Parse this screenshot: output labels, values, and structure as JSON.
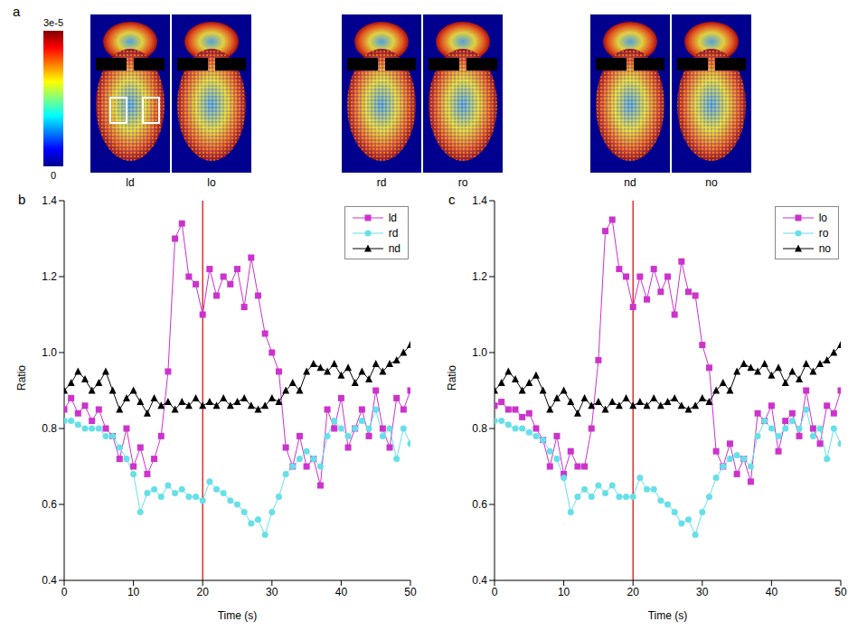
{
  "chart_data": [
    {
      "type": "heatmap",
      "label": "a",
      "images": [
        "ld",
        "lo",
        "rd",
        "ro",
        "nd",
        "no"
      ],
      "colorbar": {
        "range": [
          0,
          3e-05
        ],
        "ticks": [
          {
            "value": 0,
            "label": "0"
          },
          {
            "value": 3e-05,
            "label": "3e-5"
          }
        ]
      }
    },
    {
      "type": "line",
      "label": "b",
      "x_label": "Time (s)",
      "y_label": "Ratio",
      "xlim": [
        0,
        50
      ],
      "xticks": [
        0,
        10,
        20,
        30,
        40,
        50
      ],
      "ylim": [
        0.4,
        1.4
      ],
      "yticks": [
        0.4,
        0.6,
        0.8,
        {
          "value": 1,
          "label": "1.0"
        },
        1.2,
        1.4
      ],
      "grid": false,
      "legend": "upper right",
      "reference_x": 20,
      "reference_color": "#cc0000",
      "x": [
        0,
        1,
        2,
        3,
        4,
        5,
        6,
        7,
        8,
        9,
        10,
        11,
        12,
        13,
        14,
        15,
        16,
        17,
        18,
        19,
        20,
        21,
        22,
        23,
        24,
        25,
        26,
        27,
        28,
        29,
        30,
        31,
        32,
        33,
        34,
        35,
        36,
        37,
        38,
        39,
        40,
        41,
        42,
        43,
        44,
        45,
        46,
        47,
        48,
        49,
        50
      ],
      "series": [
        {
          "name": "ld",
          "color": "#cc33cc",
          "marker": "square",
          "line_style": "solid",
          "values": [
            0.85,
            0.88,
            0.84,
            0.86,
            0.82,
            0.85,
            0.8,
            0.78,
            0.72,
            0.8,
            0.7,
            0.75,
            0.68,
            0.72,
            0.78,
            0.95,
            1.3,
            1.34,
            1.2,
            1.18,
            1.1,
            1.22,
            1.15,
            1.2,
            1.18,
            1.22,
            1.12,
            1.25,
            1.15,
            1.05,
            1.0,
            0.95,
            0.75,
            0.7,
            0.78,
            0.7,
            0.72,
            0.65,
            0.85,
            0.8,
            0.88,
            0.75,
            0.8,
            0.85,
            0.78,
            0.9,
            0.8,
            0.75,
            0.88,
            0.85,
            0.9
          ]
        },
        {
          "name": "rd",
          "color": "#66e0e8",
          "marker": "circle",
          "line_style": "solid",
          "values": [
            0.82,
            0.82,
            0.81,
            0.8,
            0.8,
            0.8,
            0.78,
            0.78,
            0.75,
            0.72,
            0.68,
            0.58,
            0.63,
            0.64,
            0.62,
            0.65,
            0.63,
            0.64,
            0.62,
            0.62,
            0.61,
            0.66,
            0.64,
            0.63,
            0.61,
            0.6,
            0.58,
            0.55,
            0.56,
            0.52,
            0.58,
            0.62,
            0.68,
            0.7,
            0.72,
            0.74,
            0.72,
            0.7,
            0.78,
            0.82,
            0.8,
            0.78,
            0.8,
            0.82,
            0.8,
            0.85,
            0.78,
            0.8,
            0.72,
            0.8,
            0.76
          ]
        },
        {
          "name": "nd",
          "color": "#000000",
          "marker": "triangle",
          "line_style": "solid",
          "values": [
            0.9,
            0.92,
            0.95,
            0.93,
            0.9,
            0.92,
            0.95,
            0.9,
            0.85,
            0.88,
            0.9,
            0.87,
            0.84,
            0.88,
            0.86,
            0.87,
            0.85,
            0.87,
            0.86,
            0.88,
            0.86,
            0.87,
            0.86,
            0.88,
            0.86,
            0.87,
            0.88,
            0.86,
            0.85,
            0.86,
            0.88,
            0.87,
            0.9,
            0.92,
            0.9,
            0.95,
            0.97,
            0.96,
            0.95,
            0.97,
            0.94,
            0.96,
            0.92,
            0.95,
            0.93,
            0.97,
            0.95,
            0.97,
            0.98,
            1.0,
            1.02
          ]
        }
      ]
    },
    {
      "type": "line",
      "label": "c",
      "x_label": "Time (s)",
      "y_label": "Ratio",
      "xlim": [
        0,
        50
      ],
      "xticks": [
        0,
        10,
        20,
        30,
        40,
        50
      ],
      "ylim": [
        0.4,
        1.4
      ],
      "yticks": [
        0.4,
        0.6,
        0.8,
        {
          "value": 1,
          "label": "1.0"
        },
        1.2,
        1.4
      ],
      "grid": false,
      "legend": "upper right",
      "reference_x": 20,
      "reference_color": "#cc0000",
      "x": [
        0,
        1,
        2,
        3,
        4,
        5,
        6,
        7,
        8,
        9,
        10,
        11,
        12,
        13,
        14,
        15,
        16,
        17,
        18,
        19,
        20,
        21,
        22,
        23,
        24,
        25,
        26,
        27,
        28,
        29,
        30,
        31,
        32,
        33,
        34,
        35,
        36,
        37,
        38,
        39,
        40,
        41,
        42,
        43,
        44,
        45,
        46,
        47,
        48,
        49,
        50
      ],
      "series": [
        {
          "name": "lo",
          "color": "#cc33cc",
          "marker": "square",
          "line_style": "solid",
          "values": [
            0.86,
            0.87,
            0.85,
            0.85,
            0.83,
            0.84,
            0.8,
            0.77,
            0.7,
            0.78,
            0.68,
            0.74,
            0.7,
            0.7,
            0.8,
            0.98,
            1.32,
            1.35,
            1.22,
            1.2,
            1.12,
            1.2,
            1.14,
            1.22,
            1.16,
            1.2,
            1.1,
            1.24,
            1.16,
            1.15,
            1.02,
            0.96,
            0.74,
            0.7,
            0.76,
            0.68,
            0.72,
            0.66,
            0.84,
            0.82,
            0.86,
            0.74,
            0.82,
            0.84,
            0.78,
            0.9,
            0.8,
            0.76,
            0.86,
            0.84,
            0.9
          ]
        },
        {
          "name": "ro",
          "color": "#66e0e8",
          "marker": "circle",
          "line_style": "solid",
          "values": [
            0.82,
            0.82,
            0.81,
            0.8,
            0.8,
            0.79,
            0.78,
            0.77,
            0.74,
            0.72,
            0.67,
            0.58,
            0.62,
            0.64,
            0.62,
            0.65,
            0.63,
            0.65,
            0.62,
            0.62,
            0.62,
            0.67,
            0.64,
            0.64,
            0.61,
            0.6,
            0.58,
            0.55,
            0.56,
            0.52,
            0.58,
            0.62,
            0.67,
            0.7,
            0.72,
            0.73,
            0.72,
            0.7,
            0.78,
            0.82,
            0.8,
            0.78,
            0.8,
            0.82,
            0.8,
            0.85,
            0.78,
            0.8,
            0.72,
            0.8,
            0.76
          ]
        },
        {
          "name": "no",
          "color": "#000000",
          "marker": "triangle",
          "line_style": "solid",
          "values": [
            0.9,
            0.92,
            0.95,
            0.93,
            0.9,
            0.92,
            0.94,
            0.9,
            0.85,
            0.88,
            0.9,
            0.87,
            0.84,
            0.88,
            0.86,
            0.87,
            0.85,
            0.87,
            0.86,
            0.88,
            0.86,
            0.87,
            0.86,
            0.88,
            0.86,
            0.87,
            0.88,
            0.86,
            0.85,
            0.86,
            0.88,
            0.87,
            0.9,
            0.92,
            0.9,
            0.95,
            0.97,
            0.96,
            0.95,
            0.97,
            0.94,
            0.96,
            0.92,
            0.95,
            0.93,
            0.97,
            0.95,
            0.97,
            0.98,
            1.0,
            1.02
          ]
        }
      ]
    }
  ]
}
